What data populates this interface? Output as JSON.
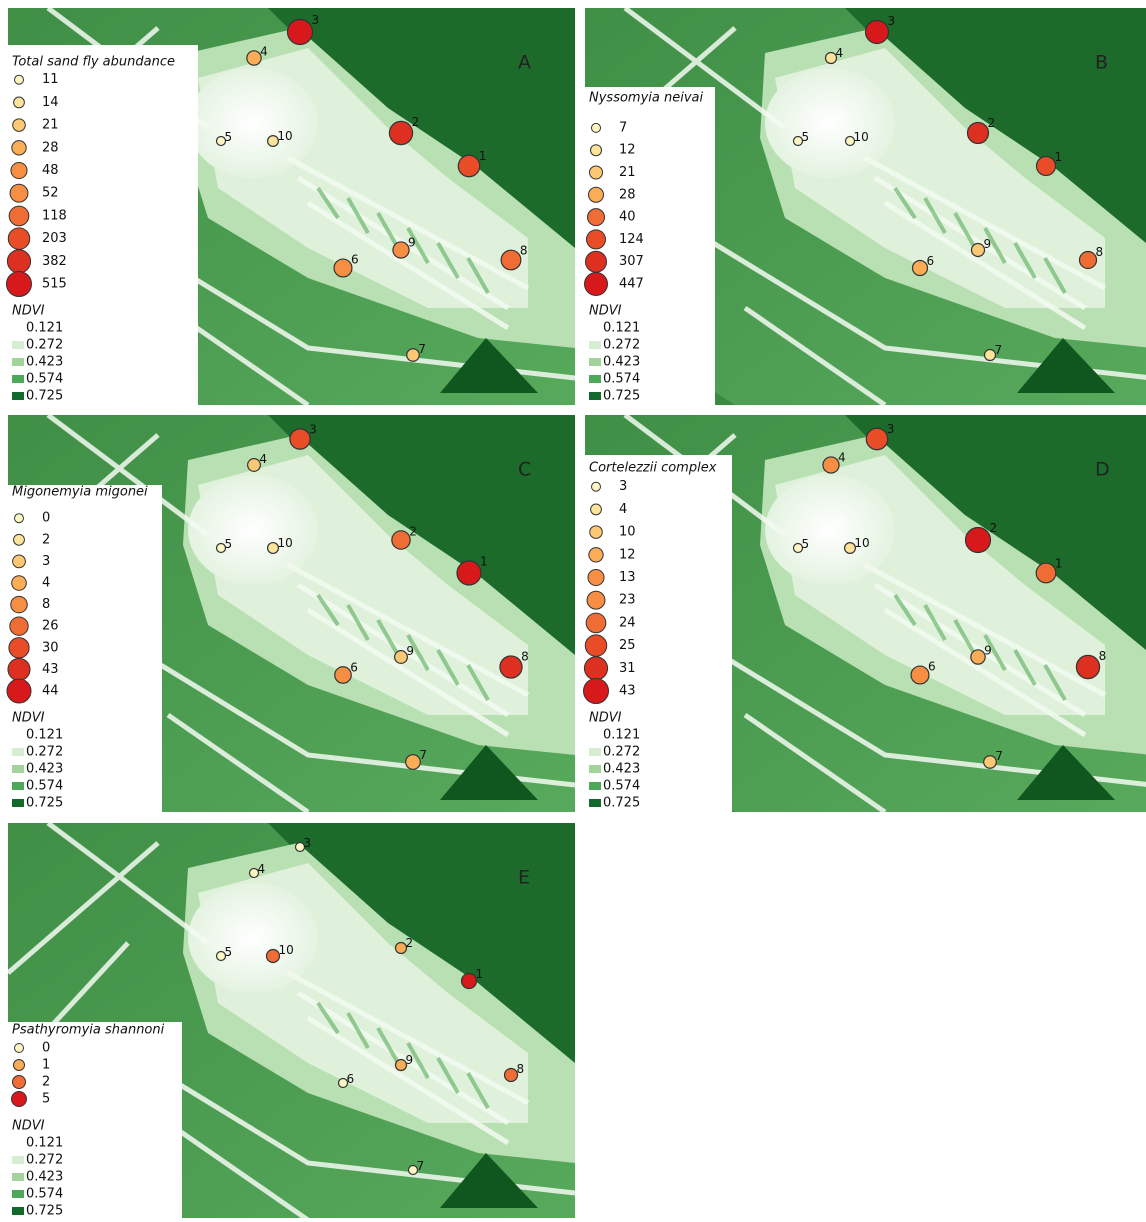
{
  "panels": [
    {
      "letter": "A",
      "legend_title": "Total sand fly abundance",
      "legend_values": [
        11,
        14,
        21,
        28,
        48,
        52,
        118,
        203,
        382,
        515
      ]
    },
    {
      "letter": "B",
      "legend_title": "Nyssomyia neivai",
      "legend_values": [
        7,
        12,
        21,
        28,
        40,
        124,
        307,
        447
      ]
    },
    {
      "letter": "C",
      "legend_title": "Migonemyia migonei",
      "legend_values": [
        0,
        2,
        3,
        4,
        8,
        26,
        30,
        43,
        44
      ]
    },
    {
      "letter": "D",
      "legend_title": "Cortelezzii complex",
      "legend_values": [
        3,
        4,
        10,
        12,
        13,
        23,
        24,
        25,
        31,
        43
      ]
    },
    {
      "letter": "E",
      "legend_title": "Psathyromyia shannoni",
      "legend_values": [
        0,
        1,
        2,
        5
      ]
    }
  ],
  "ndvi": {
    "title": "NDVI",
    "values": [
      0.121,
      0.272,
      0.423,
      0.574,
      0.725
    ]
  },
  "site_labels": [
    "1",
    "2",
    "3",
    "4",
    "5",
    "6",
    "7",
    "8",
    "9",
    "10"
  ]
}
